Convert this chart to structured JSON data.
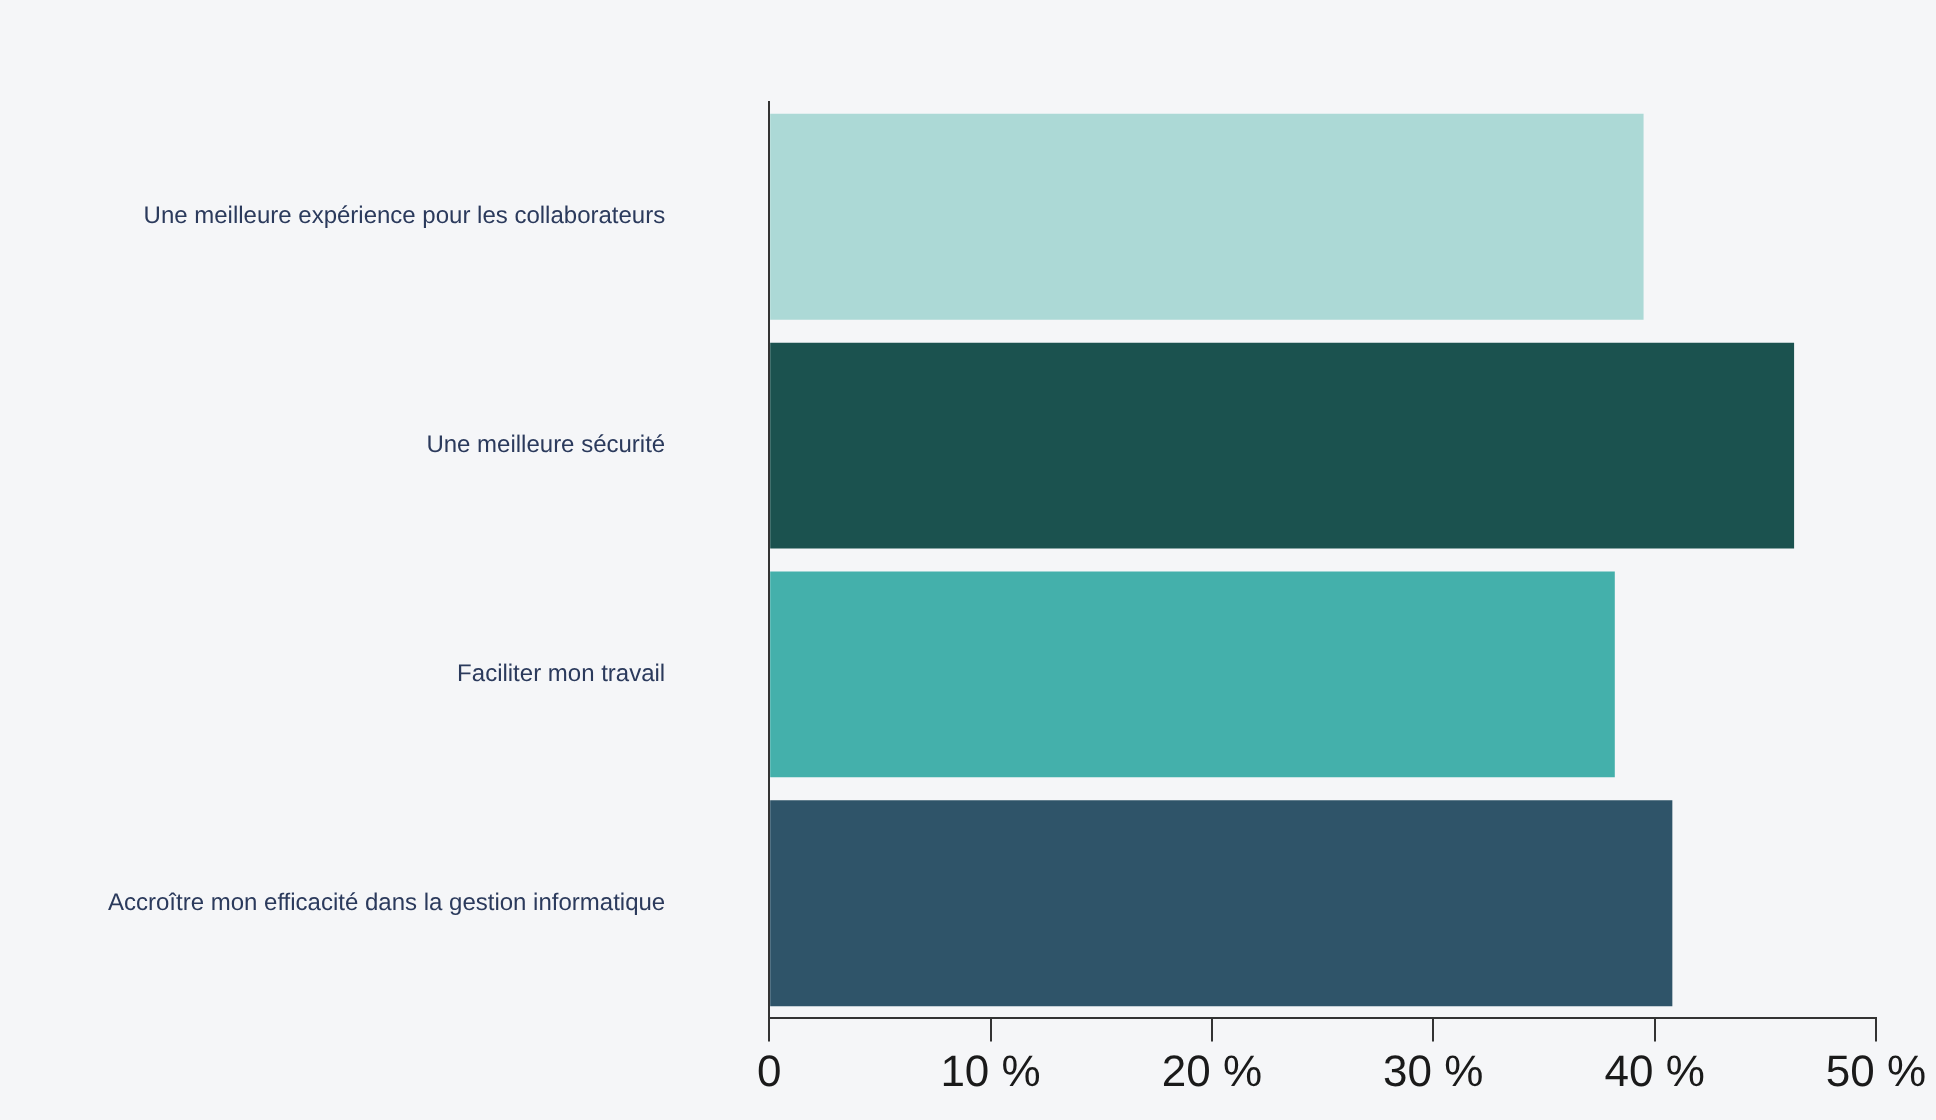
{
  "chart_data": {
    "type": "bar",
    "orientation": "horizontal",
    "categories": [
      "Une meilleure expérience pour les collaborateurs",
      "Une meilleure sécurité",
      "Faciliter mon travail",
      "Accroître mon efficacité dans la gestion informatique"
    ],
    "values": [
      39.5,
      46.3,
      38.2,
      40.8
    ],
    "colors": [
      "#acd9d6",
      "#1b524f",
      "#44b0ab",
      "#2f5469"
    ],
    "xlim": [
      0,
      50
    ],
    "xticks": [
      0,
      {
        "value": 10,
        "label": "10 %"
      },
      {
        "value": 20,
        "label": "20 %"
      },
      {
        "value": 30,
        "label": "30 %"
      },
      {
        "value": 40,
        "label": "40 %"
      },
      {
        "value": 50,
        "label": "50 %"
      }
    ],
    "legend": false
  }
}
